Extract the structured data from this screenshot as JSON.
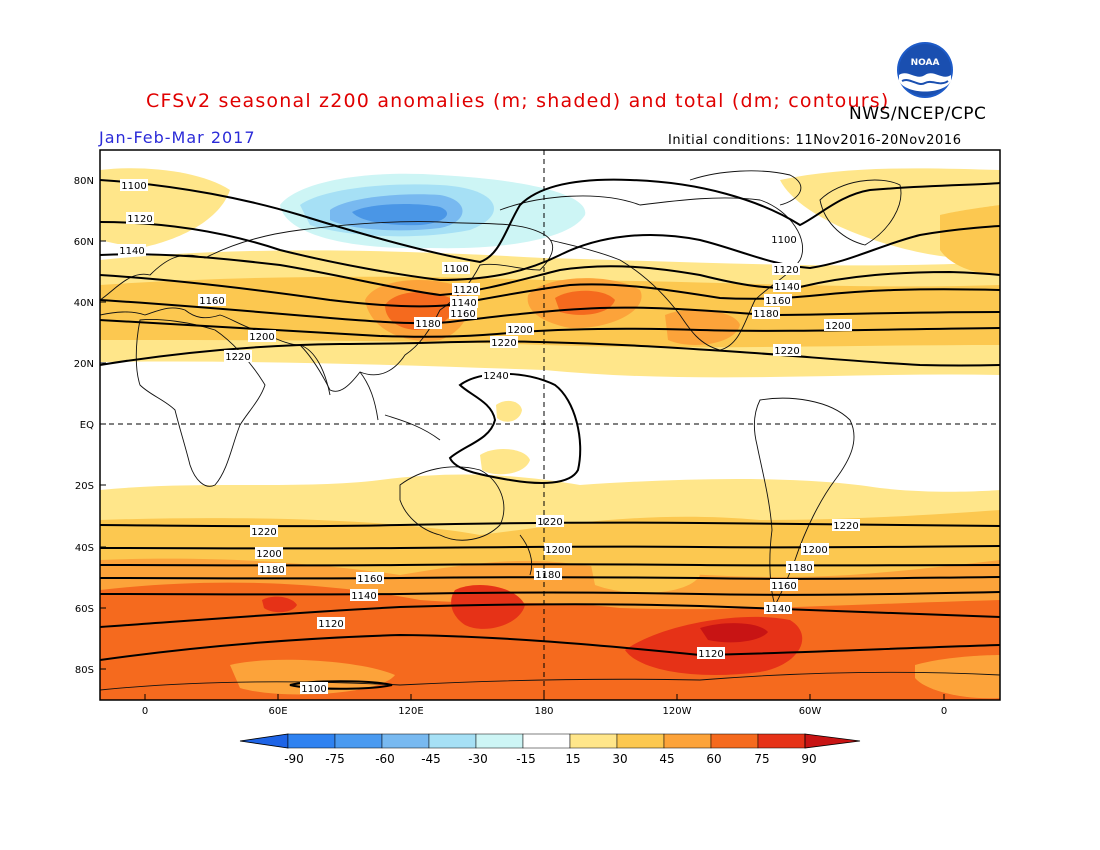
{
  "header": {
    "title": "CFSv2 seasonal z200 anomalies (m; shaded) and total (dm; contours)",
    "agency": "NWS/NCEP/CPC",
    "season": "Jan-Feb-Mar 2017",
    "initial_conditions": "Initial conditions: 11Nov2016-20Nov2016",
    "logo_text": "NOAA"
  },
  "map": {
    "lat_labels": [
      "80N",
      "60N",
      "40N",
      "20N",
      "EQ",
      "20S",
      "40S",
      "60S",
      "80S"
    ],
    "lon_labels": [
      "0",
      "60E",
      "120E",
      "180",
      "120W",
      "60W",
      "0"
    ],
    "contour_labels": [
      "1100",
      "1120",
      "1140",
      "1160",
      "1180",
      "1200",
      "1220",
      "1240"
    ]
  },
  "colorbar": {
    "ticks": [
      "-90",
      "-75",
      "-60",
      "-45",
      "-30",
      "-15",
      "15",
      "30",
      "45",
      "60",
      "75",
      "90"
    ],
    "colors": [
      "#1e64e6",
      "#2f82f0",
      "#4a9af0",
      "#7fbff5",
      "#a8e0f5",
      "#d0f5f5",
      "#ffffff",
      "#ffe68a",
      "#fcc850",
      "#fca33a",
      "#f56a1e",
      "#e63217",
      "#c81414",
      "#a00000"
    ]
  },
  "legend_colors": {
    "neg15": "#cdf5f5",
    "neg30": "#a6e0f5",
    "neg45": "#78b9f0",
    "neg60": "#4a96e6",
    "pos15": "#ffe68a",
    "pos30": "#fcc850",
    "pos45": "#fca33a",
    "pos60": "#f56a1e",
    "pos75": "#e63217",
    "pos90": "#c81414"
  }
}
